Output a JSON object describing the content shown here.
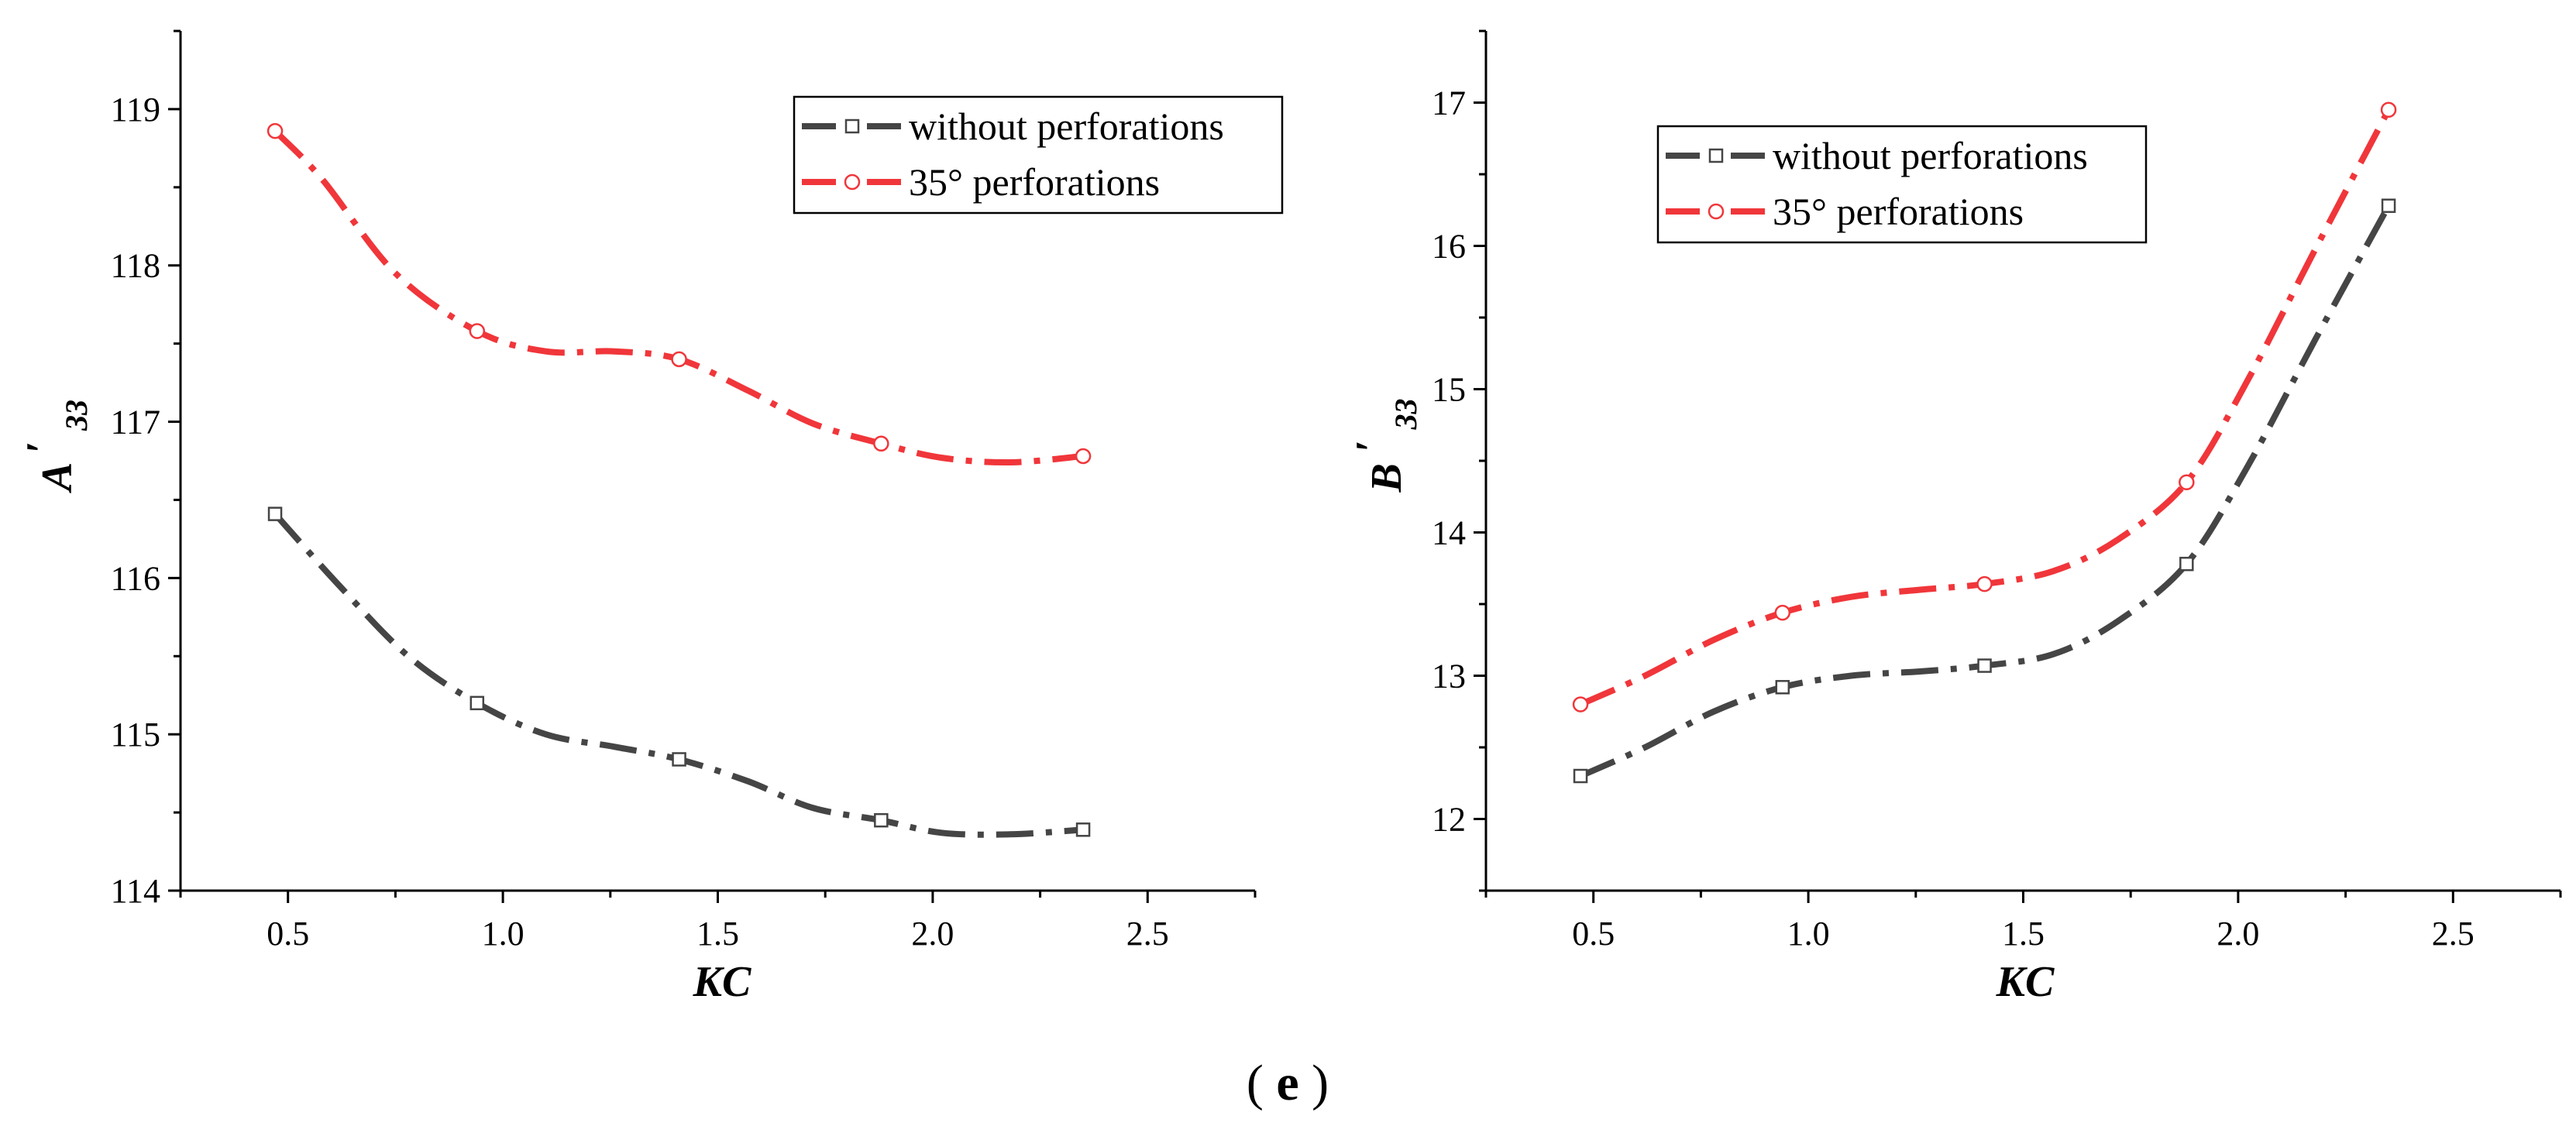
{
  "chart_data": [
    {
      "type": "line",
      "title": "",
      "xlabel": "KC",
      "ylabel_main": "A",
      "ylabel_prime": "′",
      "ylabel_sub": "33",
      "xlim": [
        0.25,
        2.75
      ],
      "ylim": [
        114,
        119.5
      ],
      "xticks": [
        0.5,
        1.0,
        1.5,
        2.0,
        2.5
      ],
      "xtick_labels": [
        "0.5",
        "1.0",
        "1.5",
        "2.0",
        "2.5"
      ],
      "yticks": [
        114,
        115,
        116,
        117,
        118,
        119
      ],
      "ytick_labels": [
        "114",
        "115",
        "116",
        "117",
        "118",
        "119"
      ],
      "legend_position": "top-right",
      "series": [
        {
          "name": "without perforations",
          "color": "#454545",
          "marker": "square",
          "x": [
            0.47,
            0.94,
            1.41,
            1.88,
            2.35
          ],
          "values": [
            116.41,
            115.2,
            114.84,
            114.45,
            114.39
          ],
          "curve": [
            [
              0.47,
              116.41
            ],
            [
              0.62,
              115.95
            ],
            [
              0.78,
              115.5
            ],
            [
              0.94,
              115.2
            ],
            [
              1.1,
              115.0
            ],
            [
              1.26,
              114.92
            ],
            [
              1.41,
              114.84
            ],
            [
              1.57,
              114.7
            ],
            [
              1.72,
              114.53
            ],
            [
              1.88,
              114.45
            ],
            [
              2.02,
              114.37
            ],
            [
              2.18,
              114.36
            ],
            [
              2.35,
              114.39
            ]
          ]
        },
        {
          "name": "35° perforations",
          "color": "#f0363a",
          "marker": "circle",
          "x": [
            0.47,
            0.94,
            1.41,
            1.88,
            2.35
          ],
          "values": [
            118.86,
            117.58,
            117.4,
            116.86,
            116.78
          ],
          "curve": [
            [
              0.47,
              118.86
            ],
            [
              0.58,
              118.55
            ],
            [
              0.75,
              117.95
            ],
            [
              0.94,
              117.58
            ],
            [
              1.1,
              117.45
            ],
            [
              1.26,
              117.45
            ],
            [
              1.41,
              117.4
            ],
            [
              1.57,
              117.2
            ],
            [
              1.72,
              116.99
            ],
            [
              1.88,
              116.86
            ],
            [
              2.02,
              116.77
            ],
            [
              2.18,
              116.74
            ],
            [
              2.35,
              116.78
            ]
          ]
        }
      ]
    },
    {
      "type": "line",
      "title": "",
      "xlabel": "KC",
      "ylabel_main": "B",
      "ylabel_prime": "′",
      "ylabel_sub": "33",
      "xlim": [
        0.25,
        2.75
      ],
      "ylim": [
        11.5,
        17.5
      ],
      "xticks": [
        0.5,
        1.0,
        1.5,
        2.0,
        2.5
      ],
      "xtick_labels": [
        "0.5",
        "1.0",
        "1.5",
        "2.0",
        "2.5"
      ],
      "yticks": [
        12,
        13,
        14,
        15,
        16,
        17
      ],
      "ytick_labels": [
        "12",
        "13",
        "14",
        "15",
        "16",
        "17"
      ],
      "legend_position": "top-left",
      "series": [
        {
          "name": "without perforations",
          "color": "#454545",
          "marker": "square",
          "x": [
            0.47,
            0.94,
            1.41,
            1.88,
            2.35
          ],
          "values": [
            12.3,
            12.92,
            13.07,
            13.78,
            16.28
          ],
          "curve": [
            [
              0.47,
              12.3
            ],
            [
              0.62,
              12.5
            ],
            [
              0.78,
              12.75
            ],
            [
              0.94,
              12.92
            ],
            [
              1.1,
              13.0
            ],
            [
              1.26,
              13.03
            ],
            [
              1.41,
              13.07
            ],
            [
              1.57,
              13.15
            ],
            [
              1.72,
              13.38
            ],
            [
              1.88,
              13.78
            ],
            [
              2.02,
              14.45
            ],
            [
              2.18,
              15.35
            ],
            [
              2.35,
              16.28
            ]
          ]
        },
        {
          "name": "35° perforations",
          "color": "#f0363a",
          "marker": "circle",
          "x": [
            0.47,
            0.94,
            1.41,
            1.88,
            2.35
          ],
          "values": [
            12.8,
            13.44,
            13.64,
            14.35,
            16.95
          ],
          "curve": [
            [
              0.47,
              12.8
            ],
            [
              0.62,
              13.0
            ],
            [
              0.78,
              13.25
            ],
            [
              0.94,
              13.44
            ],
            [
              1.1,
              13.55
            ],
            [
              1.26,
              13.6
            ],
            [
              1.41,
              13.64
            ],
            [
              1.57,
              13.73
            ],
            [
              1.72,
              13.95
            ],
            [
              1.88,
              14.35
            ],
            [
              2.02,
              15.05
            ],
            [
              2.18,
              15.98
            ],
            [
              2.35,
              16.95
            ]
          ]
        }
      ]
    }
  ],
  "caption": {
    "open": "(",
    "letter": "e",
    "close": ")"
  }
}
